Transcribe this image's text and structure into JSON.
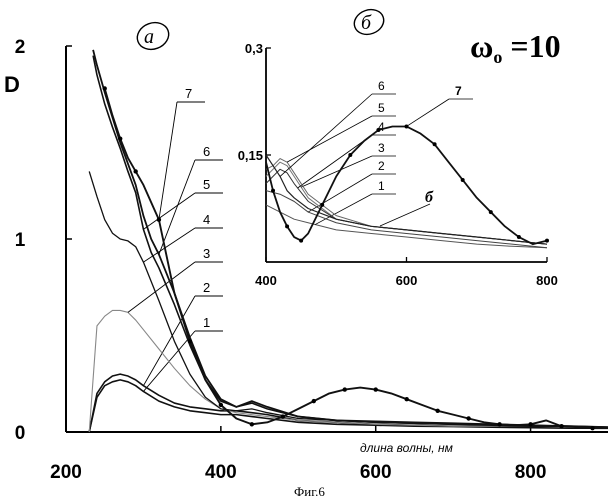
{
  "caption": "Фиг.6",
  "param": {
    "symbol": "ω",
    "sub": "o",
    "rest": " =10"
  },
  "chart_data": [
    {
      "type": "line",
      "panel": "а",
      "ylabel": "D",
      "xlabel": "длина волны, нм",
      "xlim": [
        200,
        900
      ],
      "ylim": [
        0,
        2
      ],
      "x_ticks": [
        200,
        400,
        600,
        800
      ],
      "y_ticks": [
        0,
        1,
        2
      ],
      "grid": false,
      "series": [
        {
          "name": "1",
          "x": [
            230,
            240,
            250,
            260,
            270,
            280,
            290,
            300,
            320,
            340,
            360,
            380,
            400,
            420,
            440,
            460,
            500,
            550,
            600,
            650,
            700,
            750,
            800,
            850,
            900
          ],
          "y": [
            0.0,
            0.18,
            0.24,
            0.26,
            0.27,
            0.26,
            0.24,
            0.21,
            0.16,
            0.13,
            0.11,
            0.1,
            0.09,
            0.09,
            0.08,
            0.07,
            0.05,
            0.04,
            0.035,
            0.03,
            0.028,
            0.025,
            0.022,
            0.02,
            0.02
          ]
        },
        {
          "name": "2",
          "x": [
            230,
            240,
            250,
            260,
            270,
            280,
            290,
            300,
            320,
            340,
            360,
            380,
            400,
            420,
            440,
            460,
            500,
            550,
            600,
            650,
            700,
            750,
            800,
            850,
            900
          ],
          "y": [
            0.0,
            0.2,
            0.26,
            0.29,
            0.3,
            0.29,
            0.27,
            0.24,
            0.19,
            0.15,
            0.13,
            0.12,
            0.11,
            0.11,
            0.1,
            0.09,
            0.06,
            0.05,
            0.04,
            0.035,
            0.03,
            0.028,
            0.025,
            0.022,
            0.02
          ]
        },
        {
          "name": "3",
          "x": [
            230,
            240,
            250,
            260,
            270,
            280,
            290,
            300,
            320,
            340,
            360,
            380,
            400,
            420,
            440,
            460,
            500,
            550,
            600,
            650,
            700,
            750,
            800,
            850,
            900
          ],
          "y": [
            0.0,
            0.55,
            0.6,
            0.63,
            0.63,
            0.62,
            0.58,
            0.53,
            0.43,
            0.33,
            0.24,
            0.17,
            0.12,
            0.1,
            0.09,
            0.08,
            0.06,
            0.05,
            0.04,
            0.035,
            0.03,
            0.03,
            0.03,
            0.025,
            0.02
          ]
        },
        {
          "name": "4",
          "x": [
            230,
            240,
            250,
            260,
            270,
            280,
            290,
            300,
            320,
            340,
            360,
            380,
            400,
            420,
            440,
            460,
            500,
            550,
            600,
            650,
            700,
            750,
            800,
            850,
            900
          ],
          "y": [
            1.35,
            1.22,
            1.1,
            1.03,
            1.0,
            0.99,
            0.96,
            0.88,
            0.68,
            0.47,
            0.3,
            0.18,
            0.12,
            0.11,
            0.12,
            0.1,
            0.07,
            0.06,
            0.05,
            0.045,
            0.04,
            0.04,
            0.035,
            0.03,
            0.025
          ]
        },
        {
          "name": "5",
          "x": [
            235,
            240,
            250,
            260,
            270,
            280,
            290,
            300,
            310,
            320,
            340,
            360,
            380,
            400,
            420,
            440,
            460,
            500,
            550,
            600,
            650,
            700,
            750,
            800,
            850,
            900
          ],
          "y": [
            1.95,
            1.85,
            1.7,
            1.58,
            1.47,
            1.35,
            1.24,
            1.05,
            0.93,
            0.85,
            0.66,
            0.45,
            0.27,
            0.16,
            0.13,
            0.15,
            0.12,
            0.08,
            0.06,
            0.05,
            0.045,
            0.04,
            0.035,
            0.03,
            0.03,
            0.025
          ]
        },
        {
          "name": "6",
          "x": [
            235,
            240,
            250,
            260,
            270,
            280,
            290,
            300,
            310,
            320,
            340,
            360,
            380,
            400,
            420,
            440,
            460,
            500,
            550,
            600,
            650,
            700,
            750,
            800,
            850,
            900
          ],
          "y": [
            1.98,
            1.9,
            1.76,
            1.63,
            1.5,
            1.39,
            1.28,
            1.12,
            1.0,
            0.92,
            0.72,
            0.49,
            0.29,
            0.17,
            0.13,
            0.16,
            0.13,
            0.08,
            0.06,
            0.055,
            0.05,
            0.045,
            0.04,
            0.035,
            0.03,
            0.025
          ]
        },
        {
          "name": "7",
          "x": [
            250,
            260,
            270,
            280,
            290,
            300,
            320,
            340,
            360,
            380,
            400,
            420,
            440,
            460,
            480,
            500,
            520,
            540,
            560,
            580,
            600,
            620,
            640,
            660,
            680,
            700,
            720,
            740,
            760,
            780,
            800,
            820,
            840,
            860,
            880,
            900
          ],
          "y": [
            1.78,
            1.64,
            1.52,
            1.42,
            1.35,
            1.28,
            1.1,
            0.72,
            0.47,
            0.27,
            0.14,
            0.07,
            0.04,
            0.05,
            0.08,
            0.12,
            0.16,
            0.2,
            0.22,
            0.23,
            0.22,
            0.2,
            0.17,
            0.14,
            0.11,
            0.09,
            0.07,
            0.05,
            0.04,
            0.035,
            0.04,
            0.06,
            0.03,
            0.025,
            0.02,
            0.02
          ]
        }
      ]
    },
    {
      "type": "line",
      "panel": "б",
      "xlim": [
        400,
        800
      ],
      "ylim": [
        0,
        0.3
      ],
      "x_ticks": [
        400,
        600,
        800
      ],
      "y_ticks": [
        0.15,
        0.3
      ],
      "y_tick_labels": [
        "0,15",
        "0,3"
      ],
      "grid": false,
      "extra_label": "б",
      "series": [
        {
          "name": "1",
          "x": [
            400,
            420,
            440,
            460,
            500,
            550,
            600,
            650,
            700,
            750,
            800
          ],
          "y": [
            0.08,
            0.07,
            0.06,
            0.055,
            0.045,
            0.04,
            0.035,
            0.03,
            0.025,
            0.022,
            0.02
          ]
        },
        {
          "name": "2",
          "x": [
            400,
            420,
            440,
            460,
            500,
            550,
            600,
            650,
            700,
            750,
            800
          ],
          "y": [
            0.1,
            0.095,
            0.085,
            0.07,
            0.055,
            0.045,
            0.04,
            0.035,
            0.03,
            0.025,
            0.02
          ]
        },
        {
          "name": "3",
          "x": [
            400,
            410,
            420,
            430,
            440,
            460,
            500,
            550,
            600,
            650,
            700,
            750,
            800
          ],
          "y": [
            0.12,
            0.13,
            0.14,
            0.135,
            0.12,
            0.09,
            0.06,
            0.05,
            0.045,
            0.04,
            0.035,
            0.03,
            0.025
          ]
        },
        {
          "name": "4",
          "x": [
            400,
            410,
            420,
            430,
            440,
            460,
            500,
            550,
            600,
            650,
            700,
            750,
            800
          ],
          "y": [
            0.11,
            0.12,
            0.13,
            0.125,
            0.11,
            0.085,
            0.06,
            0.05,
            0.045,
            0.04,
            0.035,
            0.03,
            0.025
          ]
        },
        {
          "name": "5",
          "x": [
            400,
            410,
            420,
            430,
            440,
            460,
            500,
            550,
            600,
            650,
            700,
            750,
            800
          ],
          "y": [
            0.13,
            0.135,
            0.145,
            0.14,
            0.125,
            0.095,
            0.065,
            0.05,
            0.045,
            0.04,
            0.035,
            0.03,
            0.025
          ]
        },
        {
          "name": "6",
          "x": [
            400,
            410,
            420,
            430,
            440,
            460,
            500,
            550,
            600,
            650,
            700,
            750,
            800
          ],
          "y": [
            0.15,
            0.135,
            0.12,
            0.1,
            0.09,
            0.075,
            0.06,
            0.05,
            0.045,
            0.04,
            0.035,
            0.03,
            0.025
          ]
        },
        {
          "name": "7",
          "x": [
            400,
            410,
            420,
            430,
            440,
            450,
            460,
            480,
            500,
            520,
            540,
            560,
            580,
            600,
            620,
            640,
            660,
            680,
            700,
            720,
            740,
            760,
            780,
            800
          ],
          "y": [
            0.14,
            0.1,
            0.07,
            0.05,
            0.035,
            0.03,
            0.04,
            0.08,
            0.12,
            0.15,
            0.17,
            0.185,
            0.19,
            0.19,
            0.18,
            0.165,
            0.14,
            0.115,
            0.09,
            0.07,
            0.05,
            0.035,
            0.025,
            0.03
          ]
        }
      ]
    }
  ]
}
